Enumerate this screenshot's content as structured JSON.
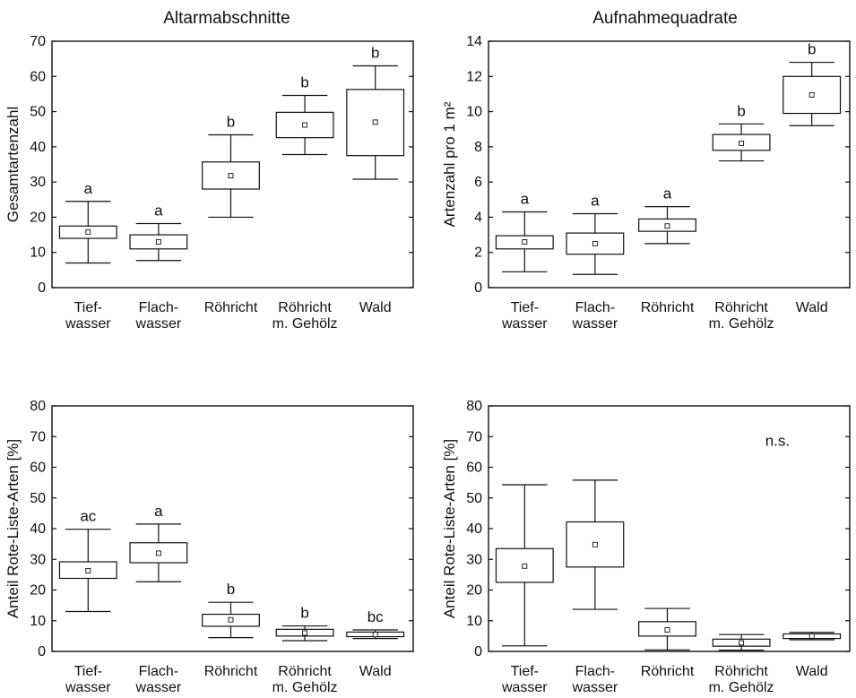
{
  "titles": {
    "left": "Altarmabschnitte",
    "right": "Aufnahmequadrate"
  },
  "categories": [
    "Tief-\nwasser",
    "Flach-\nwasser",
    "Röhricht",
    "Röhricht\nm. Gehölz",
    "Wald"
  ],
  "chart_data": [
    {
      "type": "box",
      "column_title": "Altarmabschnitte",
      "ylabel": "Gesamtartenzahl",
      "ylim": [
        0,
        70
      ],
      "yticks": [
        0,
        10,
        20,
        30,
        40,
        50,
        60,
        70
      ],
      "categories": [
        "Tief-\nwasser",
        "Flach-\nwasser",
        "Röhricht",
        "Röhricht\nm. Gehölz",
        "Wald"
      ],
      "boxes": [
        {
          "mean": 15.8,
          "q1": 14.0,
          "q3": 17.5,
          "min": 7.0,
          "max": 24.5,
          "label": "a"
        },
        {
          "mean": 13.0,
          "q1": 11.0,
          "q3": 15.0,
          "min": 7.7,
          "max": 18.2,
          "label": "a"
        },
        {
          "mean": 31.8,
          "q1": 28.0,
          "q3": 35.7,
          "min": 20.0,
          "max": 43.4,
          "label": "b"
        },
        {
          "mean": 46.2,
          "q1": 42.6,
          "q3": 49.8,
          "min": 37.8,
          "max": 54.6,
          "label": "b"
        },
        {
          "mean": 47.0,
          "q1": 37.5,
          "q3": 56.3,
          "min": 30.8,
          "max": 63.0,
          "label": "b"
        }
      ],
      "annotation": ""
    },
    {
      "type": "box",
      "column_title": "Aufnahmequadrate",
      "ylabel": "Artenzahl pro 1 m²",
      "ylim": [
        0,
        14
      ],
      "yticks": [
        0,
        2,
        4,
        6,
        8,
        10,
        12,
        14
      ],
      "categories": [
        "Tief-\nwasser",
        "Flach-\nwasser",
        "Röhricht",
        "Röhricht\nm. Gehölz",
        "Wald"
      ],
      "boxes": [
        {
          "mean": 2.6,
          "q1": 2.2,
          "q3": 2.95,
          "min": 0.9,
          "max": 4.3,
          "label": "a"
        },
        {
          "mean": 2.5,
          "q1": 1.9,
          "q3": 3.1,
          "min": 0.75,
          "max": 4.2,
          "label": "a"
        },
        {
          "mean": 3.5,
          "q1": 3.2,
          "q3": 3.9,
          "min": 2.5,
          "max": 4.6,
          "label": "a"
        },
        {
          "mean": 8.2,
          "q1": 7.8,
          "q3": 8.7,
          "min": 7.2,
          "max": 9.3,
          "label": "b"
        },
        {
          "mean": 10.95,
          "q1": 9.9,
          "q3": 12.0,
          "min": 9.2,
          "max": 12.8,
          "label": "b"
        }
      ],
      "annotation": ""
    },
    {
      "type": "box",
      "column_title": "Altarmabschnitte",
      "ylabel": "Anteil Rote-Liste-Arten [%]",
      "ylim": [
        0,
        80
      ],
      "yticks": [
        0,
        10,
        20,
        30,
        40,
        50,
        60,
        70,
        80
      ],
      "categories": [
        "Tief-\nwasser",
        "Flach-\nwasser",
        "Röhricht",
        "Röhricht\nm. Gehölz",
        "Wald"
      ],
      "boxes": [
        {
          "mean": 26.3,
          "q1": 23.8,
          "q3": 29.2,
          "min": 13.0,
          "max": 39.8,
          "label": "ac"
        },
        {
          "mean": 32.0,
          "q1": 28.9,
          "q3": 35.4,
          "min": 22.7,
          "max": 41.5,
          "label": "a"
        },
        {
          "mean": 10.3,
          "q1": 8.2,
          "q3": 12.1,
          "min": 4.5,
          "max": 16.0,
          "label": "b"
        },
        {
          "mean": 6.0,
          "q1": 5.0,
          "q3": 7.2,
          "min": 3.5,
          "max": 8.3,
          "label": "b"
        },
        {
          "mean": 5.5,
          "q1": 4.8,
          "q3": 6.3,
          "min": 4.2,
          "max": 7.0,
          "label": "bc"
        }
      ],
      "annotation": ""
    },
    {
      "type": "box",
      "column_title": "Aufnahmequadrate",
      "ylabel": "Anteil Rote-Liste-Arten [%]",
      "ylim": [
        0,
        80
      ],
      "yticks": [
        0,
        10,
        20,
        30,
        40,
        50,
        60,
        70,
        80
      ],
      "categories": [
        "Tief-\nwasser",
        "Flach-\nwasser",
        "Röhricht",
        "Röhricht\nm. Gehölz",
        "Wald"
      ],
      "boxes": [
        {
          "mean": 27.8,
          "q1": 22.5,
          "q3": 33.5,
          "min": 1.8,
          "max": 54.3,
          "label": ""
        },
        {
          "mean": 34.8,
          "q1": 27.5,
          "q3": 42.2,
          "min": 13.7,
          "max": 55.8,
          "label": ""
        },
        {
          "mean": 7.0,
          "q1": 5.0,
          "q3": 9.7,
          "min": 0.5,
          "max": 14.0,
          "label": ""
        },
        {
          "mean": 2.8,
          "q1": 1.7,
          "q3": 4.0,
          "min": 0.4,
          "max": 5.5,
          "label": ""
        },
        {
          "mean": 5.0,
          "q1": 4.2,
          "q3": 5.7,
          "min": 3.8,
          "max": 6.2,
          "label": ""
        }
      ],
      "annotation": "n.s."
    }
  ]
}
